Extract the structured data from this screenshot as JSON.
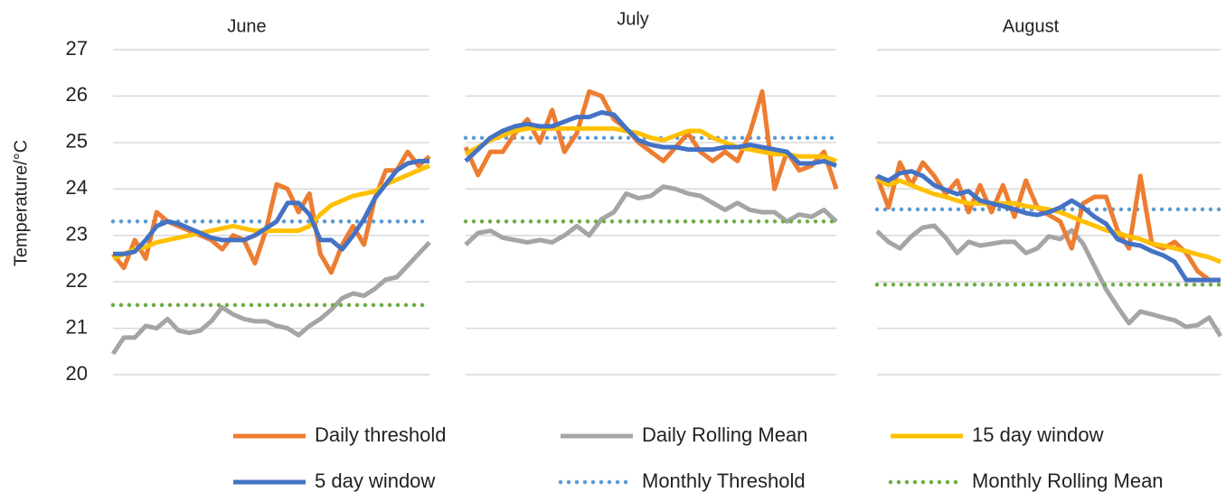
{
  "chart_data": {
    "type": "line",
    "y_label": "Temperature/°C",
    "ylim": [
      20,
      27
    ],
    "yticks": [
      20,
      21,
      22,
      23,
      24,
      25,
      26,
      27
    ],
    "grid": true,
    "legend": [
      {
        "name": "Daily threshold",
        "color": "#ed7d31",
        "style": "solid"
      },
      {
        "name": "Daily Rolling Mean",
        "color": "#a5a5a5",
        "style": "solid"
      },
      {
        "name": "15 day window",
        "color": "#ffc000",
        "style": "solid"
      },
      {
        "name": "5 day window",
        "color": "#4472c4",
        "style": "solid"
      },
      {
        "name": "Monthly Threshold",
        "color": "#5b9bd5",
        "style": "dotted"
      },
      {
        "name": "Monthly Rolling Mean",
        "color": "#70ad47",
        "style": "dotted"
      }
    ],
    "panels": [
      {
        "title": "June",
        "series": [
          {
            "values": [
              22.6,
              22.3,
              22.9,
              22.5,
              23.5,
              23.3,
              23.2,
              23.1,
              23.0,
              22.9,
              22.7,
              23.0,
              22.9,
              22.4,
              23.1,
              24.1,
              24.0,
              23.5,
              23.9,
              22.6,
              22.2,
              22.8,
              23.2,
              22.8,
              23.8,
              24.4,
              24.4,
              24.8,
              24.5,
              24.7
            ]
          },
          {
            "values": [
              20.45,
              20.8,
              20.8,
              21.05,
              21.0,
              21.2,
              20.95,
              20.9,
              20.95,
              21.15,
              21.45,
              21.3,
              21.2,
              21.15,
              21.15,
              21.05,
              21.0,
              20.85,
              21.05,
              21.2,
              21.4,
              21.65,
              21.75,
              21.7,
              21.85,
              22.05,
              22.1,
              22.35,
              22.6,
              22.85
            ]
          },
          {
            "values": [
              22.5,
              22.6,
              22.7,
              22.75,
              22.85,
              22.9,
              22.95,
              23.0,
              23.05,
              23.1,
              23.15,
              23.2,
              23.15,
              23.1,
              23.1,
              23.1,
              23.1,
              23.1,
              23.2,
              23.45,
              23.65,
              23.75,
              23.85,
              23.9,
              23.95,
              24.1,
              24.2,
              24.3,
              24.4,
              24.5
            ]
          },
          {
            "values": [
              22.6,
              22.6,
              22.65,
              22.9,
              23.2,
              23.3,
              23.25,
              23.15,
              23.05,
              22.95,
              22.9,
              22.9,
              22.9,
              23.0,
              23.15,
              23.3,
              23.7,
              23.7,
              23.45,
              22.9,
              22.9,
              22.7,
              23.0,
              23.35,
              23.8,
              24.1,
              24.4,
              24.55,
              24.6,
              24.6
            ]
          },
          {
            "value": 23.3
          },
          {
            "value": 21.5
          }
        ]
      },
      {
        "title": "July",
        "series": [
          {
            "values": [
              24.9,
              24.3,
              24.8,
              24.8,
              25.2,
              25.5,
              25.0,
              25.7,
              24.8,
              25.2,
              26.1,
              26.0,
              25.5,
              25.3,
              25.0,
              24.8,
              24.6,
              24.9,
              25.2,
              24.8,
              24.6,
              24.8,
              24.6,
              25.2,
              26.1,
              24.0,
              24.8,
              24.4,
              24.5,
              24.8,
              24.0
            ]
          },
          {
            "values": [
              22.8,
              23.05,
              23.1,
              22.95,
              22.9,
              22.85,
              22.9,
              22.85,
              23.0,
              23.2,
              23.0,
              23.35,
              23.5,
              23.9,
              23.8,
              23.85,
              24.05,
              24.0,
              23.9,
              23.85,
              23.7,
              23.55,
              23.7,
              23.55,
              23.5,
              23.5,
              23.3,
              23.45,
              23.4,
              23.55,
              23.3
            ]
          },
          {
            "values": [
              24.75,
              24.9,
              25.05,
              25.15,
              25.25,
              25.3,
              25.3,
              25.3,
              25.3,
              25.3,
              25.3,
              25.3,
              25.3,
              25.25,
              25.2,
              25.1,
              25.05,
              25.15,
              25.25,
              25.25,
              25.1,
              25.0,
              24.9,
              24.85,
              24.8,
              24.75,
              24.75,
              24.7,
              24.7,
              24.7,
              24.6
            ]
          },
          {
            "values": [
              24.6,
              24.85,
              25.1,
              25.25,
              25.35,
              25.4,
              25.35,
              25.35,
              25.45,
              25.55,
              25.55,
              25.65,
              25.6,
              25.3,
              25.05,
              24.95,
              24.9,
              24.9,
              24.85,
              24.85,
              24.85,
              24.9,
              24.9,
              24.95,
              24.9,
              24.85,
              24.8,
              24.55,
              24.55,
              24.6,
              24.5
            ]
          },
          {
            "value": 25.1
          },
          {
            "value": 23.3
          }
        ]
      },
      {
        "title": "August",
        "series": [
          {
            "values": [
              24.28,
              23.6,
              24.57,
              24.08,
              24.57,
              24.28,
              23.89,
              24.18,
              23.5,
              24.08,
              23.5,
              24.08,
              23.4,
              24.18,
              23.6,
              23.44,
              23.3,
              22.72,
              23.69,
              23.83,
              23.83,
              23.11,
              22.72,
              24.28,
              22.82,
              22.72,
              22.86,
              22.62,
              22.23,
              22.04,
              22.04
            ]
          },
          {
            "values": [
              23.09,
              22.86,
              22.72,
              22.98,
              23.17,
              23.21,
              22.95,
              22.62,
              22.86,
              22.78,
              22.82,
              22.86,
              22.86,
              22.62,
              22.72,
              22.98,
              22.92,
              23.11,
              22.82,
              22.33,
              21.84,
              21.46,
              21.11,
              21.36,
              21.3,
              21.23,
              21.17,
              21.03,
              21.07,
              21.23,
              20.83
            ]
          },
          {
            "values": [
              24.22,
              24.08,
              24.18,
              24.08,
              23.98,
              23.89,
              23.83,
              23.75,
              23.69,
              23.69,
              23.69,
              23.69,
              23.69,
              23.63,
              23.6,
              23.56,
              23.5,
              23.4,
              23.3,
              23.21,
              23.11,
              23.05,
              22.98,
              22.92,
              22.82,
              22.78,
              22.72,
              22.66,
              22.59,
              22.53,
              22.43
            ]
          },
          {
            "values": [
              24.28,
              24.18,
              24.34,
              24.38,
              24.28,
              24.08,
              23.98,
              23.89,
              23.95,
              23.75,
              23.69,
              23.63,
              23.56,
              23.48,
              23.44,
              23.5,
              23.6,
              23.75,
              23.6,
              23.4,
              23.25,
              22.92,
              22.82,
              22.78,
              22.66,
              22.57,
              22.43,
              22.04,
              22.04,
              22.04,
              22.04
            ]
          },
          {
            "value": 23.56
          },
          {
            "value": 21.94
          }
        ]
      }
    ]
  }
}
